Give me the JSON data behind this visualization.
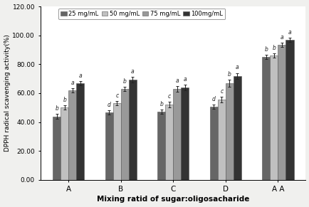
{
  "groups": [
    "A",
    "B",
    "C",
    "D",
    "A A"
  ],
  "legend_labels": [
    "25 mg/mL",
    "50 mg/mL",
    "75 mg/mL",
    "100mg/mL"
  ],
  "bar_colors": [
    "#666666",
    "#c0c0c0",
    "#999999",
    "#333333"
  ],
  "values": [
    [
      44.0,
      50.0,
      62.0,
      67.0
    ],
    [
      46.5,
      53.0,
      63.0,
      69.5
    ],
    [
      47.0,
      52.0,
      63.0,
      64.0
    ],
    [
      50.5,
      55.5,
      67.0,
      72.0
    ],
    [
      85.0,
      86.0,
      93.5,
      97.0
    ]
  ],
  "errors": [
    [
      1.5,
      1.5,
      1.5,
      1.5
    ],
    [
      1.5,
      1.5,
      1.5,
      2.0
    ],
    [
      1.5,
      2.0,
      2.0,
      2.0
    ],
    [
      1.5,
      2.0,
      2.5,
      2.0
    ],
    [
      1.5,
      1.5,
      1.5,
      1.5
    ]
  ],
  "sig_letters": [
    [
      "b",
      "b",
      "a",
      "a"
    ],
    [
      "d",
      "c",
      "b",
      "a"
    ],
    [
      "b",
      "c",
      "a",
      "a"
    ],
    [
      "d",
      "c",
      "b",
      "a"
    ],
    [
      "b",
      "b",
      "a",
      "a"
    ]
  ],
  "ylabel": "DPPH radical scavenging activity(%)",
  "xlabel": "Mixing ratid of sugar:oligosacharide",
  "ylim": [
    0,
    120
  ],
  "yticks": [
    0.0,
    20.0,
    40.0,
    60.0,
    80.0,
    100.0,
    120.0
  ],
  "ytick_labels": [
    "0.00",
    "20.00",
    "40.00",
    "60.00",
    "80.00",
    "100.00",
    "120.00"
  ],
  "figsize": [
    4.35,
    2.91
  ],
  "dpi": 100,
  "bar_width": 0.15,
  "background_color": "#f0f0ee",
  "plot_bg_color": "#ffffff"
}
